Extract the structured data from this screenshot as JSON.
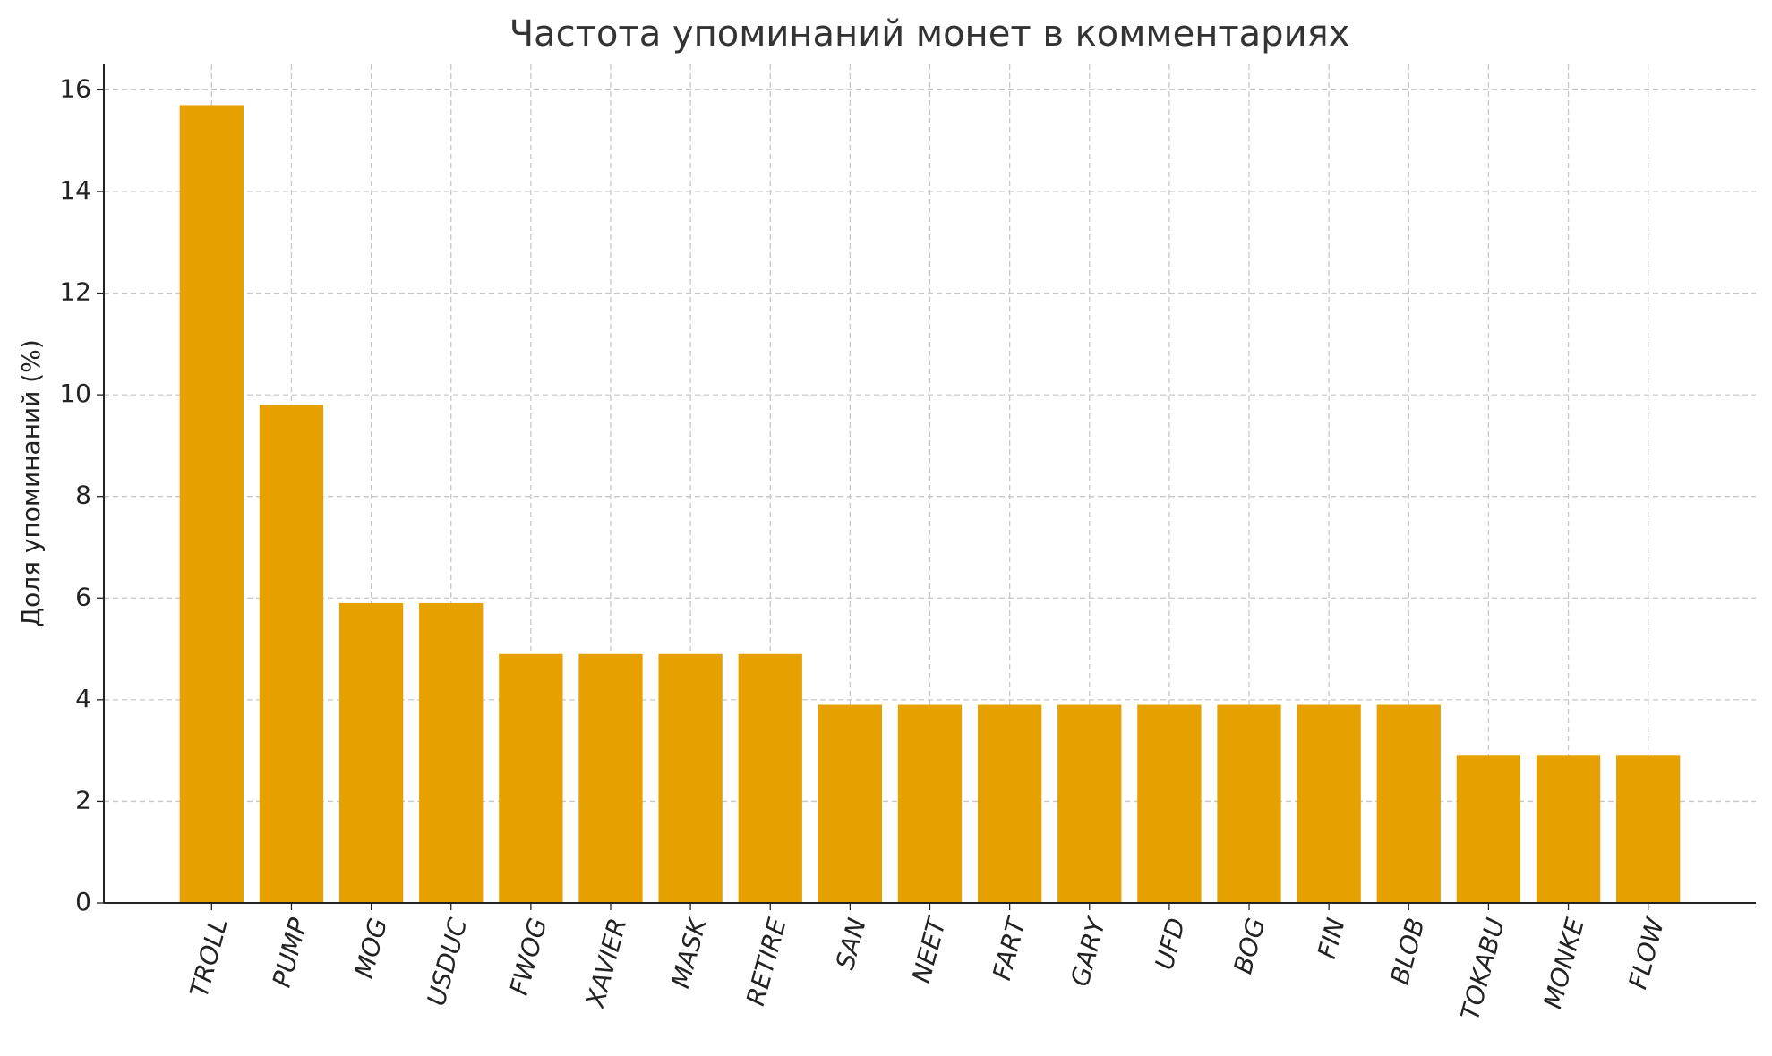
{
  "chart_data": {
    "type": "bar",
    "title": "Частота упоминаний монет в комментариях",
    "ylabel": "Доля упоминаний (%)",
    "categories": [
      "TROLL",
      "PUMP",
      "MOG",
      "USDUC",
      "FWOG",
      "XAVIER",
      "MASK",
      "RETIRE",
      "SAN",
      "NEET",
      "FART",
      "GARY",
      "UFD",
      "BOG",
      "FIN",
      "BLOB",
      "TOKABU",
      "MONKE",
      "FLOW"
    ],
    "values": [
      15.7,
      9.8,
      5.9,
      5.9,
      4.9,
      4.9,
      4.9,
      4.9,
      3.9,
      3.9,
      3.9,
      3.9,
      3.9,
      3.9,
      3.9,
      3.9,
      2.9,
      2.9,
      2.9
    ],
    "color": "#e6a000",
    "ylim": [
      0,
      16.5
    ],
    "yticks": [
      0,
      2,
      4,
      6,
      8,
      10,
      12,
      14,
      16
    ],
    "grid": true
  }
}
